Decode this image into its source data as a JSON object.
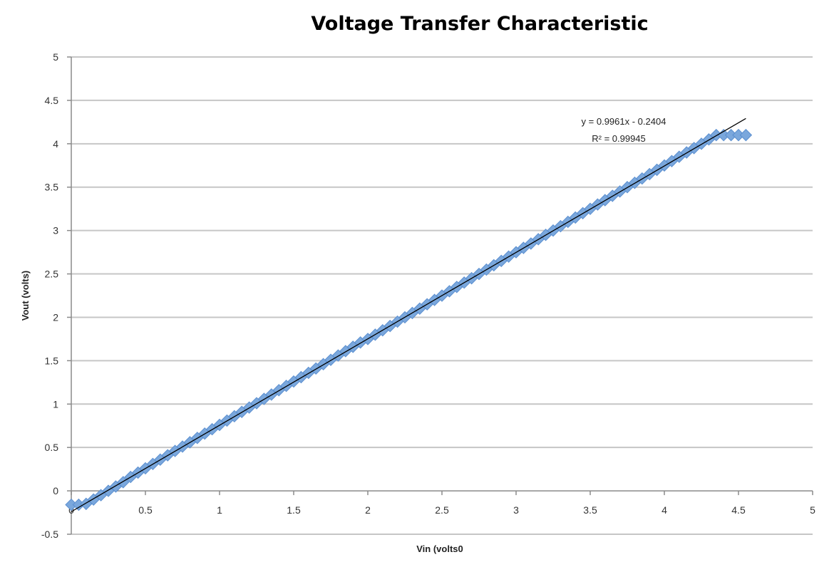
{
  "chart_data": {
    "type": "scatter",
    "title": "Voltage Transfer Characteristic",
    "xlabel": "Vin (volts0",
    "ylabel": "Vout (volts)",
    "xlim": [
      0,
      5
    ],
    "ylim": [
      -0.5,
      5
    ],
    "x_ticks": [
      "0",
      "0.5",
      "1",
      "1.5",
      "2",
      "2.5",
      "3",
      "3.5",
      "4",
      "4.5",
      "5"
    ],
    "y_ticks": [
      "-0.5",
      "0",
      "0.5",
      "1",
      "1.5",
      "2",
      "2.5",
      "3",
      "3.5",
      "4",
      "4.5",
      "5"
    ],
    "grid": "horizontal",
    "marker_color": "#7aa7dc",
    "marker_edge_color": "#5b8fd0",
    "trendline_color": "#000000",
    "series": [
      {
        "marker": "diamond",
        "x": [
          0.0,
          0.05,
          0.1,
          0.15,
          0.2,
          0.25,
          0.3,
          0.35,
          0.4,
          0.45,
          0.5,
          0.55,
          0.6,
          0.65,
          0.7,
          0.75,
          0.8,
          0.85,
          0.9,
          0.95,
          1.0,
          1.05,
          1.1,
          1.15,
          1.2,
          1.25,
          1.3,
          1.35,
          1.4,
          1.45,
          1.5,
          1.55,
          1.6,
          1.65,
          1.7,
          1.75,
          1.8,
          1.85,
          1.9,
          1.95,
          2.0,
          2.05,
          2.1,
          2.15,
          2.2,
          2.25,
          2.3,
          2.35,
          2.4,
          2.45,
          2.5,
          2.55,
          2.6,
          2.65,
          2.7,
          2.75,
          2.8,
          2.85,
          2.9,
          2.95,
          3.0,
          3.05,
          3.1,
          3.15,
          3.2,
          3.25,
          3.3,
          3.35,
          3.4,
          3.45,
          3.5,
          3.55,
          3.6,
          3.65,
          3.7,
          3.75,
          3.8,
          3.85,
          3.9,
          3.95,
          4.0,
          4.05,
          4.1,
          4.15,
          4.2,
          4.25,
          4.3,
          4.35,
          4.4,
          4.45,
          4.5,
          4.55
        ],
        "y": [
          -0.16,
          -0.16,
          -0.15,
          -0.1,
          -0.05,
          0.0,
          0.05,
          0.1,
          0.16,
          0.21,
          0.26,
          0.31,
          0.36,
          0.41,
          0.46,
          0.51,
          0.56,
          0.61,
          0.66,
          0.71,
          0.76,
          0.81,
          0.86,
          0.91,
          0.96,
          1.01,
          1.06,
          1.11,
          1.16,
          1.21,
          1.26,
          1.31,
          1.36,
          1.41,
          1.46,
          1.51,
          1.56,
          1.61,
          1.66,
          1.71,
          1.75,
          1.8,
          1.85,
          1.9,
          1.95,
          2.0,
          2.05,
          2.1,
          2.15,
          2.2,
          2.25,
          2.3,
          2.35,
          2.4,
          2.45,
          2.5,
          2.55,
          2.6,
          2.65,
          2.7,
          2.75,
          2.8,
          2.85,
          2.9,
          2.95,
          3.0,
          3.05,
          3.1,
          3.15,
          3.2,
          3.25,
          3.3,
          3.35,
          3.4,
          3.45,
          3.5,
          3.55,
          3.6,
          3.65,
          3.7,
          3.75,
          3.8,
          3.85,
          3.9,
          3.95,
          4.0,
          4.05,
          4.1,
          4.1,
          4.1,
          4.1,
          4.1
        ]
      }
    ],
    "trendline": {
      "type": "linear",
      "slope": 0.9961,
      "intercept": -0.2404,
      "x_range": [
        0.0,
        4.55
      ],
      "equation_label": "y = 0.9961x - 0.2404",
      "r2_label": "R² = 0.99945"
    }
  }
}
